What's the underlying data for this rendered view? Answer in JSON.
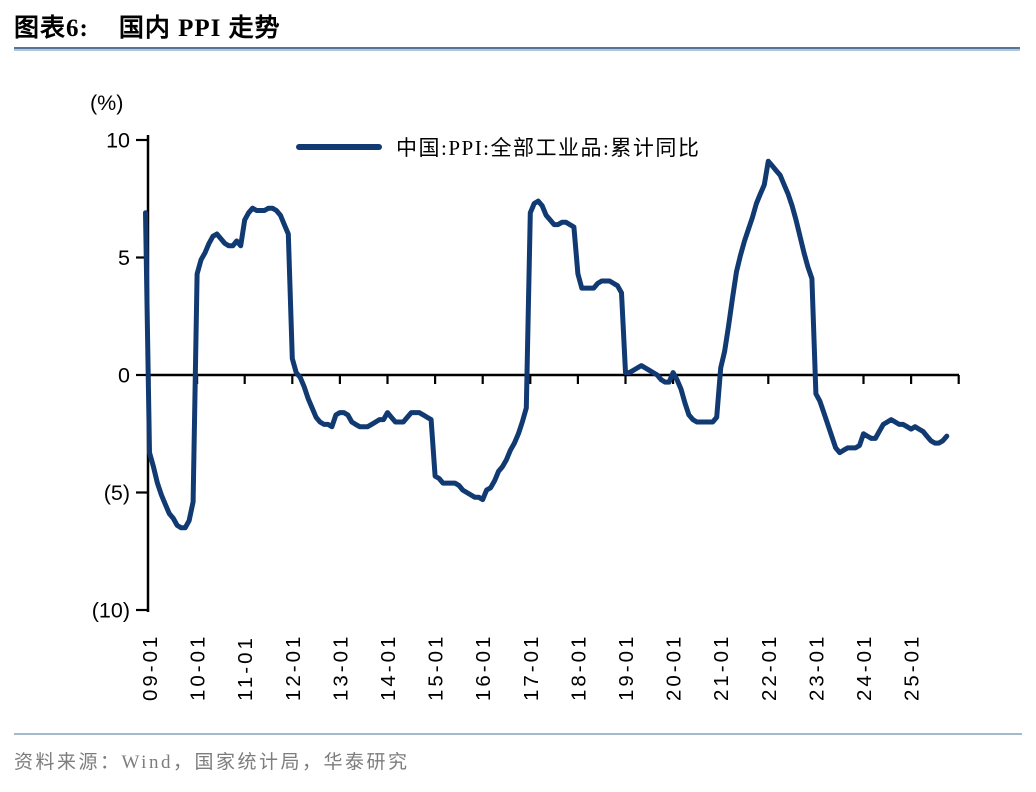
{
  "header": {
    "chart_label": "图表6:",
    "title": "国内 PPI 走势"
  },
  "legend": {
    "series_label": "中国:PPI:全部工业品:累计同比"
  },
  "footer": {
    "source_text": "资料来源：Wind，国家统计局，华泰研究"
  },
  "colors": {
    "line": "#113A72",
    "axis": "#000000",
    "title_rule_dark": "#54769B",
    "title_rule_light": "#B3C5D8",
    "footer_rule": "#A3B9CD",
    "footer_text": "#7D7D7D"
  },
  "chart_data": {
    "type": "line",
    "title": "国内 PPI 走势",
    "unit_label": "(%)",
    "xlabel": "",
    "ylabel": "(%)",
    "ylim": [
      -10,
      10
    ],
    "grid": false,
    "legend_position": "top-center",
    "y_ticks": [
      {
        "value": 10,
        "label": "10"
      },
      {
        "value": 5,
        "label": "5"
      },
      {
        "value": 0,
        "label": "0"
      },
      {
        "value": -5,
        "label": "(5)"
      },
      {
        "value": -10,
        "label": "(10)"
      }
    ],
    "x_tick_labels": [
      "09-01",
      "10-01",
      "11-01",
      "12-01",
      "13-01",
      "14-01",
      "15-01",
      "16-01",
      "17-01",
      "18-01",
      "19-01",
      "20-01",
      "21-01",
      "22-01",
      "23-01",
      "24-01",
      "25-01"
    ],
    "series": [
      {
        "name": "中国:PPI:全部工业品:累计同比",
        "start_month": "2008-12",
        "frequency": "monthly",
        "values": [
          6.9,
          -3.3,
          -3.9,
          -4.6,
          -5.1,
          -5.5,
          -5.9,
          -6.1,
          -6.4,
          -6.5,
          -6.5,
          -6.2,
          -5.4,
          4.3,
          4.9,
          5.2,
          5.6,
          5.9,
          6.0,
          5.8,
          5.6,
          5.5,
          5.5,
          5.7,
          5.5,
          6.6,
          6.9,
          7.1,
          7.0,
          7.0,
          7.0,
          7.1,
          7.1,
          7.0,
          6.8,
          6.4,
          6.0,
          0.7,
          0.1,
          -0.1,
          -0.5,
          -1.0,
          -1.4,
          -1.8,
          -2.0,
          -2.1,
          -2.1,
          -2.2,
          -1.7,
          -1.6,
          -1.6,
          -1.7,
          -2.0,
          -2.1,
          -2.2,
          -2.2,
          -2.2,
          -2.1,
          -2.0,
          -1.9,
          -1.9,
          -1.6,
          -1.8,
          -2.0,
          -2.0,
          -2.0,
          -1.8,
          -1.6,
          -1.6,
          -1.6,
          -1.7,
          -1.8,
          -1.9,
          -4.3,
          -4.4,
          -4.6,
          -4.6,
          -4.6,
          -4.6,
          -4.7,
          -4.9,
          -5.0,
          -5.1,
          -5.2,
          -5.2,
          -5.3,
          -4.9,
          -4.8,
          -4.5,
          -4.1,
          -3.9,
          -3.6,
          -3.2,
          -2.9,
          -2.5,
          -2.0,
          -1.4,
          6.9,
          7.3,
          7.4,
          7.2,
          6.8,
          6.6,
          6.4,
          6.4,
          6.5,
          6.5,
          6.4,
          6.3,
          4.3,
          3.7,
          3.7,
          3.7,
          3.7,
          3.9,
          4.0,
          4.0,
          4.0,
          3.9,
          3.8,
          3.5,
          0.1,
          0.1,
          0.2,
          0.3,
          0.4,
          0.3,
          0.2,
          0.1,
          0.0,
          -0.2,
          -0.3,
          -0.3,
          0.1,
          -0.2,
          -0.6,
          -1.2,
          -1.7,
          -1.9,
          -2.0,
          -2.0,
          -2.0,
          -2.0,
          -2.0,
          -1.8,
          0.3,
          1.0,
          2.1,
          3.3,
          4.4,
          5.1,
          5.7,
          6.2,
          6.7,
          7.3,
          7.7,
          8.1,
          9.1,
          8.9,
          8.7,
          8.5,
          8.1,
          7.7,
          7.2,
          6.6,
          5.9,
          5.2,
          4.6,
          4.1,
          -0.8,
          -1.1,
          -1.6,
          -2.1,
          -2.6,
          -3.1,
          -3.3,
          -3.2,
          -3.1,
          -3.1,
          -3.1,
          -3.0,
          -2.5,
          -2.6,
          -2.7,
          -2.7,
          -2.4,
          -2.1,
          -2.0,
          -1.9,
          -2.0,
          -2.1,
          -2.1,
          -2.2,
          -2.3,
          -2.2,
          -2.3,
          -2.4,
          -2.6,
          -2.8,
          -2.9,
          -2.9,
          -2.8,
          -2.6
        ]
      }
    ]
  }
}
